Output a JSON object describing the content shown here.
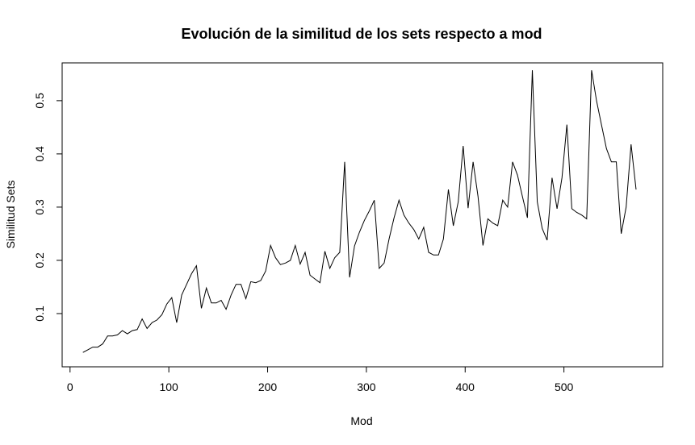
{
  "chart_data": {
    "type": "line",
    "title": "Evolución de la similitud de los sets respecto a mod",
    "xlabel": "Mod",
    "ylabel": "Similitud Sets",
    "xlim": [
      -8,
      600
    ],
    "ylim": [
      0,
      0.571
    ],
    "x_ticks": [
      0,
      100,
      200,
      300,
      400,
      500
    ],
    "x_tick_labels": [
      "0",
      "100",
      "200",
      "300",
      "400",
      "500"
    ],
    "y_ticks": [
      0.1,
      0.2,
      0.3,
      0.4,
      0.5
    ],
    "y_tick_labels": [
      "0.1",
      "0.2",
      "0.3",
      "0.4",
      "0.5"
    ],
    "grid": false,
    "line_color": "#000000",
    "series": [
      {
        "x": [
          13,
          18,
          23,
          28,
          33,
          38,
          43,
          48,
          53,
          58,
          63,
          68,
          73,
          78,
          83,
          88,
          93,
          98,
          103,
          108,
          113,
          118,
          123,
          128,
          133,
          138,
          143,
          148,
          153,
          158,
          163,
          168,
          173,
          178,
          183,
          188,
          193,
          198,
          203,
          208,
          213,
          218,
          223,
          228,
          233,
          238,
          243,
          248,
          253,
          258,
          263,
          268,
          273,
          278,
          283,
          288,
          293,
          298,
          303,
          308,
          313,
          318,
          323,
          328,
          333,
          338,
          343,
          348,
          353,
          358,
          363,
          368,
          373,
          378,
          383,
          388,
          393,
          398,
          403,
          408,
          413,
          418,
          423,
          428,
          433,
          438,
          443,
          448,
          453,
          458,
          463,
          468,
          473,
          478,
          483,
          488,
          493,
          498,
          503,
          508,
          513,
          518,
          523,
          528,
          533,
          538,
          543,
          548,
          553,
          558,
          563,
          568,
          573
        ],
        "values": [
          0.027,
          0.032,
          0.037,
          0.037,
          0.043,
          0.058,
          0.058,
          0.06,
          0.068,
          0.062,
          0.068,
          0.07,
          0.09,
          0.072,
          0.083,
          0.088,
          0.098,
          0.118,
          0.13,
          0.083,
          0.135,
          0.155,
          0.175,
          0.19,
          0.11,
          0.148,
          0.12,
          0.12,
          0.125,
          0.108,
          0.135,
          0.155,
          0.155,
          0.128,
          0.16,
          0.158,
          0.162,
          0.18,
          0.228,
          0.205,
          0.192,
          0.195,
          0.2,
          0.228,
          0.193,
          0.215,
          0.172,
          0.165,
          0.158,
          0.217,
          0.185,
          0.205,
          0.215,
          0.385,
          0.168,
          0.227,
          0.253,
          0.275,
          0.293,
          0.313,
          0.185,
          0.195,
          0.24,
          0.28,
          0.313,
          0.285,
          0.27,
          0.258,
          0.24,
          0.262,
          0.215,
          0.21,
          0.21,
          0.24,
          0.333,
          0.265,
          0.31,
          0.415,
          0.298,
          0.385,
          0.32,
          0.228,
          0.278,
          0.27,
          0.265,
          0.313,
          0.3,
          0.385,
          0.36,
          0.32,
          0.28,
          0.557,
          0.31,
          0.26,
          0.238,
          0.355,
          0.297,
          0.355,
          0.455,
          0.297,
          0.29,
          0.285,
          0.278,
          0.557,
          0.5,
          0.455,
          0.41,
          0.385,
          0.385,
          0.25,
          0.3,
          0.418,
          0.333
        ]
      }
    ]
  }
}
